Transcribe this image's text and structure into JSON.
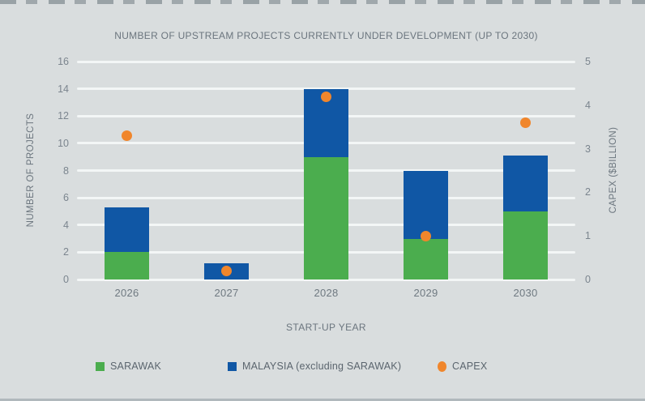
{
  "chart_data": {
    "type": "bar",
    "title": "NUMBER OF UPSTREAM PROJECTS CURRENTLY UNDER DEVELOPMENT (UP TO 2030)",
    "categories": [
      "2026",
      "2027",
      "2028",
      "2029",
      "2030"
    ],
    "series": [
      {
        "name": "SARAWAK",
        "type": "bar",
        "stack": "projects",
        "axis": "left",
        "color": "#4bad4e",
        "values": [
          2,
          0,
          9,
          3,
          5
        ]
      },
      {
        "name": "MALAYSIA (excluding SARAWAK)",
        "type": "bar",
        "stack": "projects",
        "axis": "left",
        "color": "#1057a5",
        "values": [
          3.3,
          1.2,
          5,
          5,
          4.1
        ]
      },
      {
        "name": "CAPEX",
        "type": "scatter",
        "axis": "right",
        "color": "#f0862c",
        "values": [
          3.3,
          0.2,
          4.2,
          1.0,
          3.6
        ]
      }
    ],
    "xlabel": "START-UP YEAR",
    "left_axis": {
      "label": "NUMBER OF PROJECTS",
      "min": 0,
      "max": 16,
      "ticks": [
        0,
        2,
        4,
        6,
        8,
        10,
        12,
        14,
        16
      ]
    },
    "right_axis": {
      "label": "CAPEX ($BILLION)",
      "min": 0,
      "max": 5,
      "ticks": [
        0,
        1,
        2,
        3,
        4,
        5
      ]
    },
    "grid": true,
    "legend_position": "bottom",
    "legend": [
      {
        "label": "SARAWAK",
        "shape": "square",
        "color": "#4bad4e"
      },
      {
        "label": "MALAYSIA (excluding SARAWAK)",
        "shape": "square",
        "color": "#1057a5"
      },
      {
        "label": "CAPEX",
        "shape": "circle",
        "color": "#f0862c"
      }
    ],
    "colors": {
      "background": "#d9ddde",
      "gridline": "#f3f6f6",
      "text": "#6b757e"
    }
  }
}
